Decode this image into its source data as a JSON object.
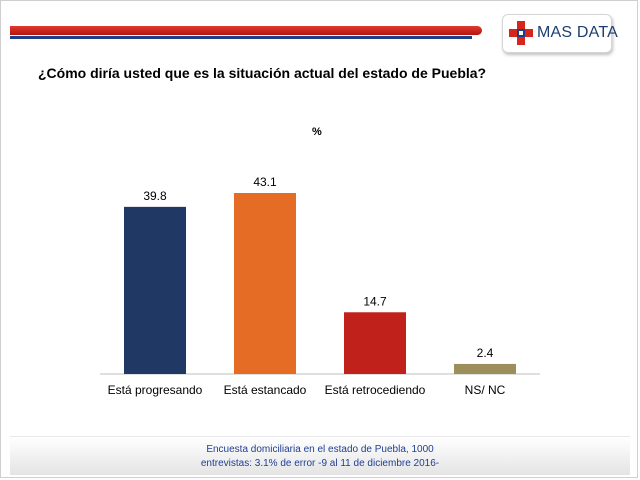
{
  "brand": {
    "name": "MAS DATA"
  },
  "question": "¿Cómo diría usted que es la situación actual del estado de Puebla?",
  "unit_label": "%",
  "chart_data": {
    "type": "bar",
    "title": "¿Cómo diría usted que es la situación actual del estado de Puebla?",
    "ylabel": "%",
    "categories": [
      "Está progresando",
      "Está estancado",
      "Está retrocediendo",
      "NS/ NC"
    ],
    "values": [
      39.8,
      43.1,
      14.7,
      2.4
    ],
    "data_labels": [
      "39.8",
      "43.1",
      "14.7",
      "2.4"
    ],
    "colors": [
      "#1f3864",
      "#e46c24",
      "#c0211b",
      "#9c8f5c"
    ],
    "ylim": [
      0,
      50
    ],
    "grid": false,
    "legend": "none"
  },
  "footer": {
    "line1": "Encuesta domiciliaria en el estado de Puebla, 1000",
    "line2": "entrevistas: 3.1% de error -9 al 11 de diciembre 2016-"
  },
  "colors": {
    "header_red": "#d8251b",
    "header_blue": "#1d3f8a",
    "footer_text": "#1f3f93"
  }
}
